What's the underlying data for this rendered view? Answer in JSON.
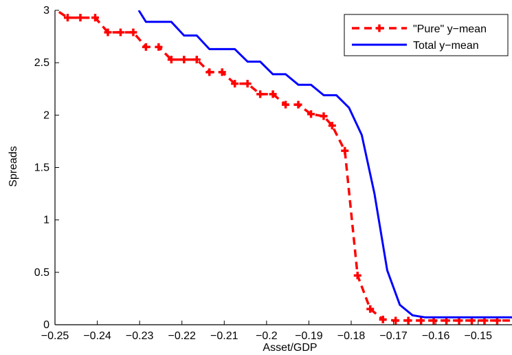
{
  "chart_data": {
    "type": "line",
    "xlabel": "Asset/GDP",
    "ylabel": "Spreads",
    "xlim": [
      -0.25,
      -0.142
    ],
    "ylim": [
      0,
      3
    ],
    "x_ticks": [
      -0.25,
      -0.24,
      -0.23,
      -0.22,
      -0.21,
      -0.2,
      -0.19,
      -0.18,
      -0.17,
      -0.16,
      -0.15
    ],
    "x_tick_labels": [
      "−0.25",
      "−0.24",
      "−0.23",
      "−0.22",
      "−0.21",
      "−0.2",
      "−0.19",
      "−0.18",
      "−0.17",
      "−0.16",
      "−0.15"
    ],
    "y_ticks": [
      0,
      0.5,
      1,
      1.5,
      2,
      2.5,
      3
    ],
    "y_tick_labels": [
      "0",
      "0.5",
      "1",
      "1.5",
      "2",
      "2.5",
      "3"
    ],
    "grid": false,
    "legend": {
      "position": "top-right"
    },
    "series": [
      {
        "name": "\"Pure\" y−mean",
        "color": "#ff0000",
        "style": "dashed-plus",
        "x": [
          -0.2515,
          -0.247,
          -0.244,
          -0.2405,
          -0.2375,
          -0.2345,
          -0.2315,
          -0.2285,
          -0.2255,
          -0.2225,
          -0.2195,
          -0.2165,
          -0.2135,
          -0.2105,
          -0.2075,
          -0.2045,
          -0.2015,
          -0.1985,
          -0.1955,
          -0.1925,
          -0.1895,
          -0.1865,
          -0.1845,
          -0.1815,
          -0.1785,
          -0.1755,
          -0.1725,
          -0.1695,
          -0.1665,
          -0.1635,
          -0.1605,
          -0.1575,
          -0.1545,
          -0.1515,
          -0.1485,
          -0.1455,
          -0.142
        ],
        "y": [
          3.05,
          2.93,
          2.93,
          2.93,
          2.79,
          2.79,
          2.79,
          2.65,
          2.65,
          2.53,
          2.53,
          2.53,
          2.41,
          2.41,
          2.3,
          2.3,
          2.2,
          2.2,
          2.1,
          2.1,
          2.01,
          1.99,
          1.9,
          1.66,
          0.47,
          0.15,
          0.05,
          0.04,
          0.04,
          0.04,
          0.04,
          0.04,
          0.04,
          0.04,
          0.04,
          0.04,
          0.04
        ],
        "markers": [
          false,
          true,
          true,
          true,
          true,
          true,
          true,
          true,
          true,
          true,
          true,
          true,
          true,
          true,
          true,
          true,
          true,
          true,
          true,
          true,
          true,
          true,
          true,
          true,
          true,
          true,
          true,
          true,
          true,
          true,
          true,
          true,
          true,
          true,
          true,
          true,
          false
        ]
      },
      {
        "name": "Total y−mean",
        "color": "#0000ff",
        "style": "solid",
        "x": [
          -0.2302,
          -0.2285,
          -0.2255,
          -0.2225,
          -0.2195,
          -0.2165,
          -0.2135,
          -0.2105,
          -0.2075,
          -0.2045,
          -0.2015,
          -0.1985,
          -0.1955,
          -0.1925,
          -0.1895,
          -0.1865,
          -0.1835,
          -0.1805,
          -0.1775,
          -0.1745,
          -0.1715,
          -0.1685,
          -0.1655,
          -0.1625,
          -0.1595,
          -0.1565,
          -0.1535,
          -0.1505,
          -0.1475,
          -0.1445,
          -0.142
        ],
        "y": [
          3.0,
          2.89,
          2.89,
          2.89,
          2.76,
          2.76,
          2.63,
          2.63,
          2.63,
          2.51,
          2.51,
          2.39,
          2.39,
          2.29,
          2.29,
          2.19,
          2.19,
          2.07,
          1.81,
          1.25,
          0.52,
          0.19,
          0.09,
          0.07,
          0.07,
          0.07,
          0.07,
          0.07,
          0.07,
          0.07,
          0.07
        ]
      }
    ]
  }
}
